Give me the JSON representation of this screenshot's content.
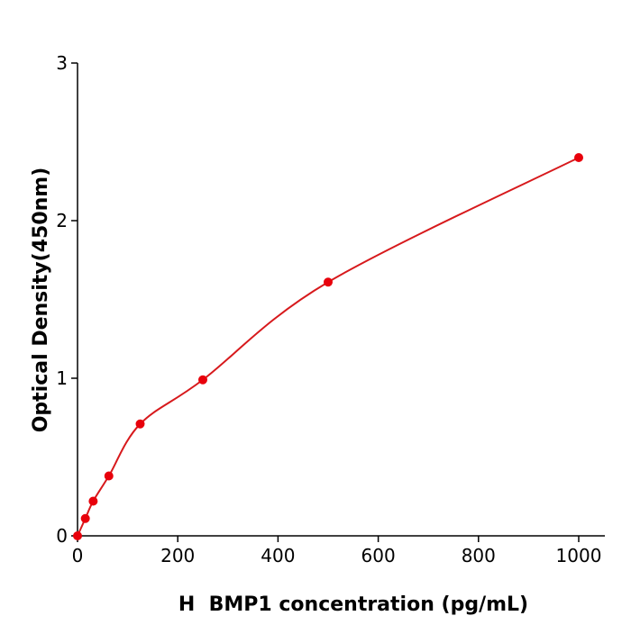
{
  "chart_data": {
    "type": "scatter",
    "xlabel": "H  BMP1 concentration (pg/mL)",
    "ylabel": "Optical Density(450nm)",
    "xlim": [
      0,
      1050
    ],
    "ylim": [
      0,
      3
    ],
    "xticks": [
      0,
      200,
      400,
      600,
      800,
      1000
    ],
    "yticks": [
      0,
      1,
      2,
      3
    ],
    "grid": false,
    "series": [
      {
        "x": [
          0,
          15.6,
          31.25,
          62.5,
          125,
          250,
          500,
          1000
        ],
        "y": [
          0.0,
          0.11,
          0.22,
          0.38,
          0.71,
          0.99,
          1.61,
          2.4
        ],
        "fit_curve": true
      }
    ],
    "colors": {
      "series": "#e8000b",
      "curve": "#d7191c",
      "axis": "#000000"
    }
  }
}
